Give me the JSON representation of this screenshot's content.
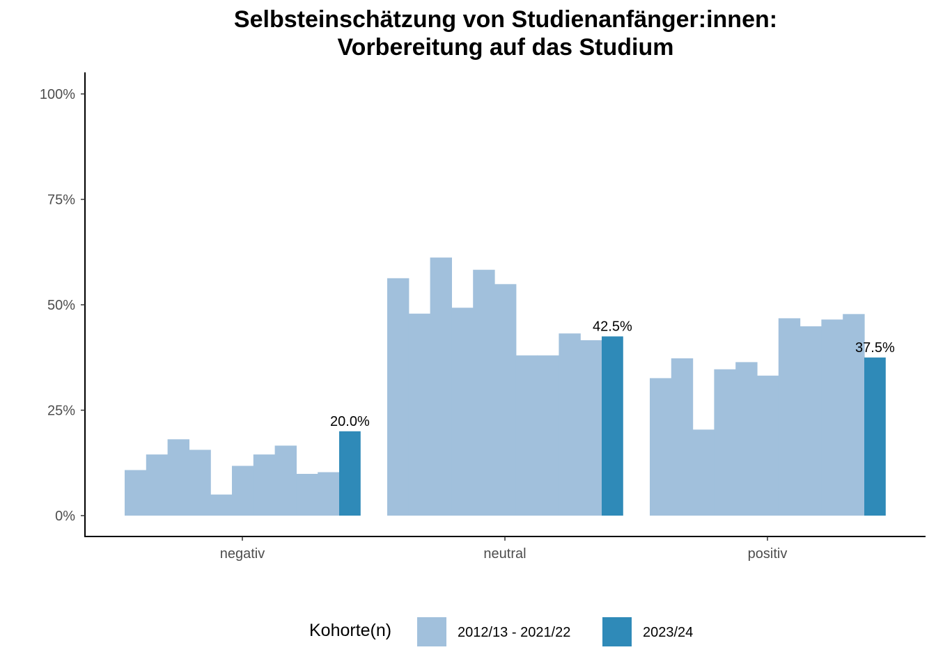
{
  "chart_data": {
    "type": "bar",
    "title": "Selbsteinschätzung von Studienanfänger:innen:",
    "subtitle": "Vorbereitung auf das Studium",
    "categories": [
      "negativ",
      "neutral",
      "positiv"
    ],
    "yticks": [
      "0%",
      "25%",
      "50%",
      "75%",
      "100%"
    ],
    "ylim": [
      0,
      1.05
    ],
    "legend": {
      "title": "Kohorte(n)",
      "placement": "bottom",
      "items": [
        {
          "label": "2012/13 - 2021/22",
          "color": "#a1c0dc"
        },
        {
          "label": "2023/24",
          "color": "#2f8ab8"
        }
      ]
    },
    "series": [
      {
        "group": "2012/13 - 2021/22",
        "color": "#a1c0dc",
        "values_per_category": [
          [
            0.108,
            0.145,
            0.181,
            0.156,
            0.05,
            0.118,
            0.145,
            0.166,
            0.099,
            0.103
          ],
          [
            0.563,
            0.479,
            0.612,
            0.493,
            0.583,
            0.549,
            0.38,
            0.38,
            0.432,
            0.416
          ],
          [
            0.326,
            0.373,
            0.204,
            0.347,
            0.364,
            0.332,
            0.468,
            0.449,
            0.465,
            0.478
          ]
        ]
      },
      {
        "group": "2023/24",
        "color": "#2f8ab8",
        "values": [
          0.2,
          0.425,
          0.375
        ],
        "labels": [
          "20.0%",
          "42.5%",
          "37.5%"
        ]
      }
    ],
    "grid": false,
    "bars_per_category": 11
  }
}
